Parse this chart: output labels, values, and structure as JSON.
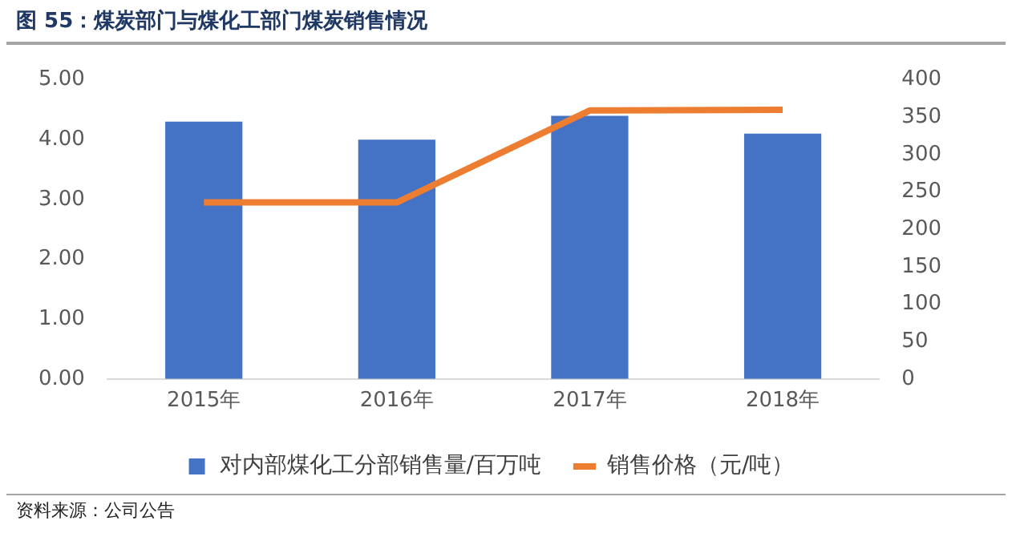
{
  "chart_data": {
    "type": "bar",
    "title": "图 55：煤炭部门与煤化工部门煤炭销售情况",
    "categories": [
      "2015年",
      "2016年",
      "2017年",
      "2018年"
    ],
    "series": [
      {
        "name": "对内部煤化工分部销售量/百万吨",
        "color": "#4472c4",
        "values": [
          4.3,
          4.0,
          4.4,
          4.1
        ]
      },
      {
        "name": "销售价格（元/吨）",
        "type": "line",
        "axis": "y2",
        "color": "#ed7d31",
        "values": [
          236,
          236,
          359,
          360
        ]
      }
    ],
    "ylim": [
      0,
      5
    ],
    "yticks": [
      {
        "value": 0,
        "label": "0.00"
      },
      {
        "value": 1,
        "label": "1.00"
      },
      {
        "value": 2,
        "label": "2.00"
      },
      {
        "value": 3,
        "label": "3.00"
      },
      {
        "value": 4,
        "label": "4.00"
      },
      {
        "value": 5,
        "label": "5.00"
      }
    ],
    "y2lim": [
      0,
      400
    ],
    "y2ticks": [
      0,
      50,
      100,
      150,
      200,
      250,
      300,
      350,
      400
    ],
    "grid": false,
    "legend": "bottom",
    "marker": "none",
    "annotations": [
      "资料来源：公司公告"
    ]
  }
}
